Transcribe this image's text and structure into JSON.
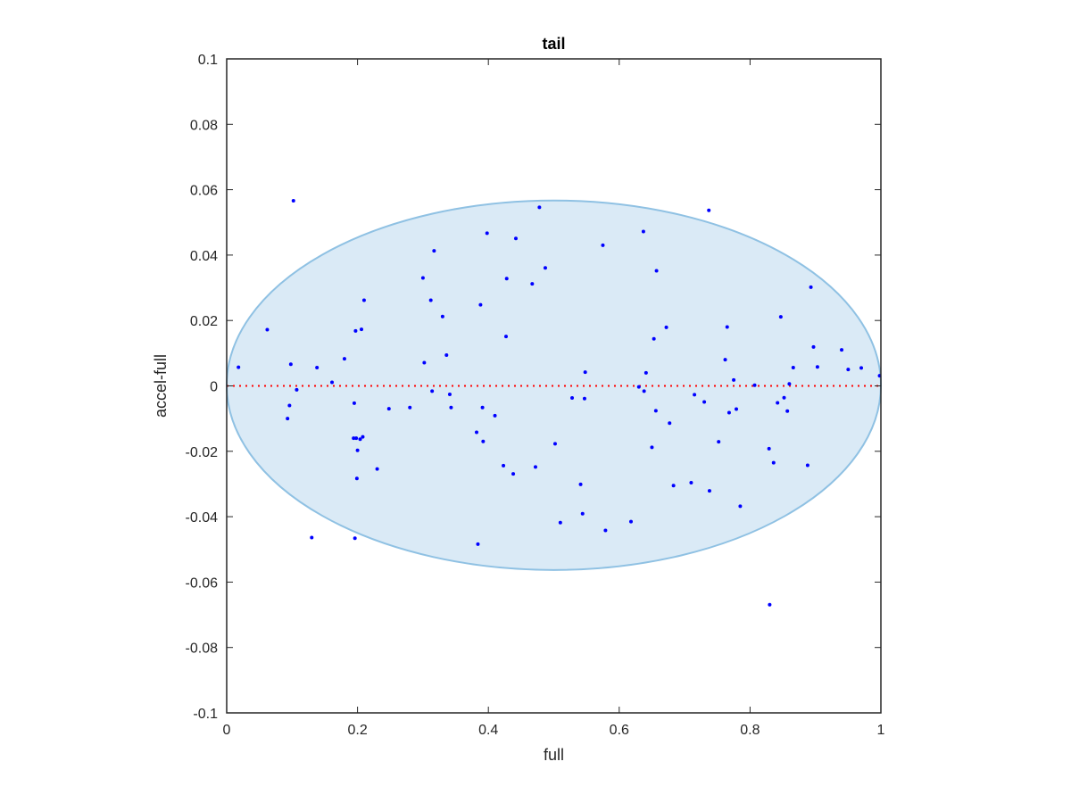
{
  "chart_data": {
    "type": "scatter",
    "title": "tail",
    "xlabel": "full",
    "ylabel": "accel-full",
    "xlim": [
      0,
      1
    ],
    "ylim": [
      -0.1,
      0.1
    ],
    "xticks": [
      0,
      0.2,
      0.4,
      0.6,
      0.8,
      1
    ],
    "xtick_labels": [
      "0",
      "0.2",
      "0.4",
      "0.6",
      "0.8",
      "1"
    ],
    "yticks": [
      -0.1,
      -0.08,
      -0.06,
      -0.04,
      -0.02,
      0,
      0.02,
      0.04,
      0.06,
      0.08,
      0.1
    ],
    "ytick_labels": [
      "-0.1",
      "-0.08",
      "-0.06",
      "-0.04",
      "-0.02",
      "0",
      "0.02",
      "0.04",
      "0.06",
      "0.08",
      "0.1"
    ],
    "grid": false,
    "points": {
      "x": [
        0.018,
        0.062,
        0.098,
        0.102,
        0.107,
        0.096,
        0.093,
        0.13,
        0.138,
        0.161,
        0.18,
        0.195,
        0.197,
        0.198,
        0.2,
        0.204,
        0.206,
        0.208,
        0.21,
        0.194,
        0.199,
        0.196,
        0.23,
        0.248,
        0.28,
        0.3,
        0.302,
        0.312,
        0.314,
        0.317,
        0.33,
        0.336,
        0.341,
        0.343,
        0.382,
        0.384,
        0.388,
        0.391,
        0.392,
        0.398,
        0.41,
        0.423,
        0.427,
        0.428,
        0.438,
        0.442,
        0.467,
        0.472,
        0.478,
        0.487,
        0.502,
        0.51,
        0.528,
        0.541,
        0.544,
        0.547,
        0.548,
        0.575,
        0.579,
        0.618,
        0.63,
        0.637,
        0.638,
        0.641,
        0.65,
        0.653,
        0.656,
        0.657,
        0.672,
        0.677,
        0.683,
        0.71,
        0.715,
        0.73,
        0.737,
        0.738,
        0.752,
        0.762,
        0.765,
        0.768,
        0.775,
        0.779,
        0.785,
        0.807,
        0.829,
        0.83,
        0.836,
        0.842,
        0.847,
        0.852,
        0.857,
        0.86,
        0.866,
        0.888,
        0.893,
        0.897,
        0.903,
        0.94,
        0.95,
        0.97,
        0.998
      ],
      "y": [
        0.0057,
        0.0172,
        0.0066,
        0.0566,
        -0.0012,
        -0.006,
        -0.01,
        -0.0464,
        0.0056,
        0.0011,
        0.0083,
        -0.0053,
        0.0168,
        -0.016,
        -0.0197,
        -0.0163,
        0.0173,
        -0.0156,
        0.0262,
        -0.016,
        -0.0283,
        -0.0466,
        -0.0254,
        -0.007,
        -0.0066,
        0.033,
        0.0071,
        0.0262,
        -0.0016,
        0.0413,
        0.0212,
        0.0094,
        -0.0026,
        -0.0066,
        -0.0142,
        -0.0484,
        0.0248,
        -0.0066,
        -0.017,
        0.0467,
        -0.0091,
        -0.0244,
        0.0151,
        0.0328,
        -0.0269,
        0.0451,
        0.0312,
        -0.0248,
        0.0546,
        0.0361,
        -0.0177,
        -0.0418,
        -0.0037,
        -0.0301,
        -0.0391,
        -0.0039,
        0.0042,
        0.043,
        -0.0442,
        -0.0415,
        -0.0003,
        0.0472,
        -0.0016,
        0.004,
        -0.0188,
        0.0144,
        -0.0076,
        0.0352,
        0.0179,
        -0.0114,
        -0.0305,
        -0.0296,
        -0.0027,
        -0.0049,
        0.0537,
        -0.0321,
        -0.0171,
        0.008,
        0.018,
        -0.0082,
        0.0018,
        -0.0071,
        -0.0368,
        0.0002,
        -0.0192,
        -0.0669,
        -0.0235,
        -0.0052,
        0.0211,
        -0.0036,
        -0.0077,
        0.0006,
        0.0056,
        -0.0243,
        0.0302,
        0.0119,
        0.0058,
        0.011,
        0.005,
        0.0055,
        0.0031
      ],
      "color": "#0000ff"
    },
    "ellipse": {
      "center_x": 0.5,
      "center_y": 0.0002,
      "radius_x": 0.5,
      "radius_y": 0.0565,
      "fill": "#daeaf6",
      "stroke": "#8fc1e3"
    },
    "reference_line": {
      "y": 0,
      "color": "#ff0000",
      "style": "dotted"
    }
  }
}
